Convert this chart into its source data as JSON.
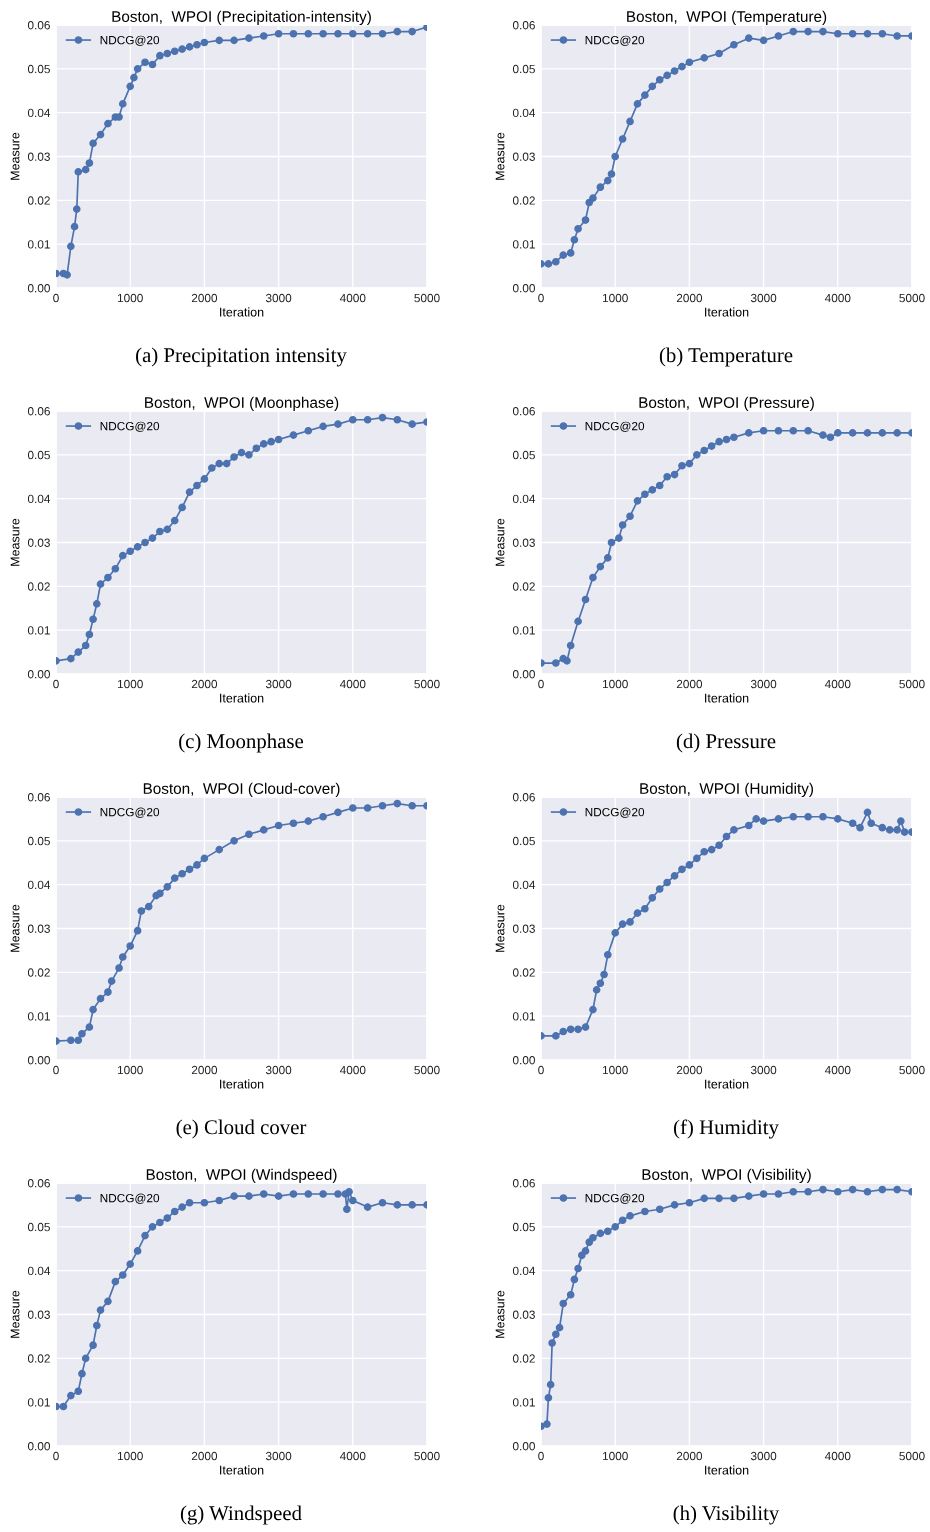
{
  "chart_data": [
    {
      "type": "line",
      "title": "Boston,  WPOI (Precipitation-intensity)",
      "xlabel": "Iteration",
      "ylabel": "Measure",
      "annotations": [
        "(a) Precipitation intensity"
      ],
      "xlim": [
        0,
        5000
      ],
      "ylim": [
        0,
        0.06
      ],
      "xticks": [
        0,
        1000,
        2000,
        3000,
        4000,
        5000
      ],
      "yticks": [
        {
          "value": 0,
          "label": "0.00"
        },
        {
          "value": 0.01,
          "label": "0.01"
        },
        {
          "value": 0.02,
          "label": "0.02"
        },
        {
          "value": 0.03,
          "label": "0.03"
        },
        {
          "value": 0.04,
          "label": "0.04"
        },
        {
          "value": 0.05,
          "label": "0.05"
        },
        {
          "value": 0.06,
          "label": "0.06"
        }
      ],
      "grid": true,
      "legend": "top left",
      "marker": "circle",
      "line_style": "solid",
      "series": [
        {
          "name": "NDCG@20",
          "color": "#4c72b0",
          "x": [
            0,
            100,
            150,
            200,
            250,
            280,
            300,
            400,
            450,
            500,
            600,
            700,
            800,
            850,
            900,
            1000,
            1050,
            1100,
            1200,
            1300,
            1400,
            1500,
            1600,
            1700,
            1800,
            1900,
            2000,
            2200,
            2400,
            2600,
            2800,
            3000,
            3200,
            3400,
            3600,
            3800,
            4000,
            4200,
            4400,
            4600,
            4800,
            5000
          ],
          "values": [
            0.0033,
            0.0033,
            0.003,
            0.0095,
            0.014,
            0.018,
            0.0265,
            0.027,
            0.0285,
            0.033,
            0.035,
            0.0375,
            0.039,
            0.039,
            0.042,
            0.046,
            0.048,
            0.05,
            0.0515,
            0.051,
            0.053,
            0.0535,
            0.054,
            0.0545,
            0.055,
            0.0555,
            0.056,
            0.0565,
            0.0565,
            0.057,
            0.0575,
            0.058,
            0.058,
            0.058,
            0.058,
            0.058,
            0.058,
            0.058,
            0.058,
            0.0585,
            0.0585,
            0.0595
          ]
        }
      ]
    },
    {
      "type": "line",
      "title": "Boston,  WPOI (Temperature)",
      "xlabel": "Iteration",
      "ylabel": "Measure",
      "annotations": [
        "(b) Temperature"
      ],
      "xlim": [
        0,
        5000
      ],
      "ylim": [
        0,
        0.06
      ],
      "xticks": [
        0,
        1000,
        2000,
        3000,
        4000,
        5000
      ],
      "yticks": [
        {
          "value": 0,
          "label": "0.00"
        },
        {
          "value": 0.01,
          "label": "0.01"
        },
        {
          "value": 0.02,
          "label": "0.02"
        },
        {
          "value": 0.03,
          "label": "0.03"
        },
        {
          "value": 0.04,
          "label": "0.04"
        },
        {
          "value": 0.05,
          "label": "0.05"
        },
        {
          "value": 0.06,
          "label": "0.06"
        }
      ],
      "grid": true,
      "legend": "top left",
      "marker": "circle",
      "line_style": "solid",
      "series": [
        {
          "name": "NDCG@20",
          "color": "#4c72b0",
          "x": [
            0,
            100,
            200,
            300,
            400,
            450,
            500,
            600,
            650,
            700,
            800,
            900,
            950,
            1000,
            1100,
            1200,
            1300,
            1400,
            1500,
            1600,
            1700,
            1800,
            1900,
            2000,
            2200,
            2400,
            2600,
            2800,
            3000,
            3200,
            3400,
            3600,
            3800,
            4000,
            4200,
            4400,
            4600,
            4800,
            5000
          ],
          "values": [
            0.0055,
            0.0055,
            0.006,
            0.0075,
            0.008,
            0.011,
            0.0135,
            0.0155,
            0.0195,
            0.0205,
            0.023,
            0.0245,
            0.026,
            0.03,
            0.034,
            0.038,
            0.042,
            0.044,
            0.046,
            0.0475,
            0.0485,
            0.0495,
            0.0505,
            0.0515,
            0.0525,
            0.0535,
            0.0555,
            0.057,
            0.0565,
            0.0575,
            0.0585,
            0.0585,
            0.0585,
            0.058,
            0.058,
            0.058,
            0.058,
            0.0575,
            0.0575
          ]
        }
      ]
    },
    {
      "type": "line",
      "title": "Boston,  WPOI (Moonphase)",
      "xlabel": "Iteration",
      "ylabel": "Measure",
      "annotations": [
        "(c) Moonphase"
      ],
      "xlim": [
        0,
        5000
      ],
      "ylim": [
        0,
        0.06
      ],
      "xticks": [
        0,
        1000,
        2000,
        3000,
        4000,
        5000
      ],
      "yticks": [
        {
          "value": 0,
          "label": "0.00"
        },
        {
          "value": 0.01,
          "label": "0.01"
        },
        {
          "value": 0.02,
          "label": "0.02"
        },
        {
          "value": 0.03,
          "label": "0.03"
        },
        {
          "value": 0.04,
          "label": "0.04"
        },
        {
          "value": 0.05,
          "label": "0.05"
        },
        {
          "value": 0.06,
          "label": "0.06"
        }
      ],
      "grid": true,
      "legend": "top left",
      "marker": "circle",
      "line_style": "solid",
      "series": [
        {
          "name": "NDCG@20",
          "color": "#4c72b0",
          "x": [
            0,
            200,
            300,
            400,
            450,
            500,
            550,
            600,
            700,
            800,
            900,
            1000,
            1100,
            1200,
            1300,
            1400,
            1500,
            1600,
            1700,
            1800,
            1900,
            2000,
            2100,
            2200,
            2300,
            2400,
            2500,
            2600,
            2700,
            2800,
            2900,
            3000,
            3200,
            3400,
            3600,
            3800,
            4000,
            4200,
            4400,
            4600,
            4800,
            5000
          ],
          "values": [
            0.003,
            0.0035,
            0.005,
            0.0065,
            0.009,
            0.0125,
            0.016,
            0.0205,
            0.022,
            0.024,
            0.027,
            0.028,
            0.029,
            0.03,
            0.031,
            0.0325,
            0.033,
            0.035,
            0.038,
            0.0415,
            0.043,
            0.0445,
            0.047,
            0.048,
            0.048,
            0.0495,
            0.0505,
            0.05,
            0.0515,
            0.0525,
            0.053,
            0.0535,
            0.0545,
            0.0555,
            0.0565,
            0.057,
            0.058,
            0.058,
            0.0585,
            0.058,
            0.057,
            0.0575
          ]
        }
      ]
    },
    {
      "type": "line",
      "title": "Boston,  WPOI (Pressure)",
      "xlabel": "Iteration",
      "ylabel": "Measure",
      "annotations": [
        "(d) Pressure"
      ],
      "xlim": [
        0,
        5000
      ],
      "ylim": [
        0,
        0.06
      ],
      "xticks": [
        0,
        1000,
        2000,
        3000,
        4000,
        5000
      ],
      "yticks": [
        {
          "value": 0,
          "label": "0.00"
        },
        {
          "value": 0.01,
          "label": "0.01"
        },
        {
          "value": 0.02,
          "label": "0.02"
        },
        {
          "value": 0.03,
          "label": "0.03"
        },
        {
          "value": 0.04,
          "label": "0.04"
        },
        {
          "value": 0.05,
          "label": "0.05"
        },
        {
          "value": 0.06,
          "label": "0.06"
        }
      ],
      "grid": true,
      "legend": "top left",
      "marker": "circle",
      "line_style": "solid",
      "series": [
        {
          "name": "NDCG@20",
          "color": "#4c72b0",
          "x": [
            0,
            200,
            300,
            350,
            400,
            500,
            600,
            700,
            800,
            900,
            950,
            1050,
            1100,
            1200,
            1300,
            1400,
            1500,
            1600,
            1700,
            1800,
            1900,
            2000,
            2100,
            2200,
            2300,
            2400,
            2500,
            2600,
            2800,
            3000,
            3200,
            3400,
            3600,
            3800,
            3900,
            4000,
            4200,
            4400,
            4600,
            4800,
            5000
          ],
          "values": [
            0.0025,
            0.0025,
            0.0035,
            0.003,
            0.0065,
            0.012,
            0.017,
            0.022,
            0.0245,
            0.0265,
            0.03,
            0.031,
            0.034,
            0.036,
            0.0395,
            0.041,
            0.042,
            0.043,
            0.045,
            0.0455,
            0.0475,
            0.048,
            0.05,
            0.051,
            0.052,
            0.053,
            0.0535,
            0.054,
            0.055,
            0.0555,
            0.0555,
            0.0555,
            0.0555,
            0.0545,
            0.054,
            0.055,
            0.055,
            0.055,
            0.055,
            0.055,
            0.055
          ]
        }
      ]
    },
    {
      "type": "line",
      "title": "Boston,  WPOI (Cloud-cover)",
      "xlabel": "Iteration",
      "ylabel": "Measure",
      "annotations": [
        "(e) Cloud cover"
      ],
      "xlim": [
        0,
        5000
      ],
      "ylim": [
        0,
        0.06
      ],
      "xticks": [
        0,
        1000,
        2000,
        3000,
        4000,
        5000
      ],
      "yticks": [
        {
          "value": 0,
          "label": "0.00"
        },
        {
          "value": 0.01,
          "label": "0.01"
        },
        {
          "value": 0.02,
          "label": "0.02"
        },
        {
          "value": 0.03,
          "label": "0.03"
        },
        {
          "value": 0.04,
          "label": "0.04"
        },
        {
          "value": 0.05,
          "label": "0.05"
        },
        {
          "value": 0.06,
          "label": "0.06"
        }
      ],
      "grid": true,
      "legend": "top left",
      "marker": "circle",
      "line_style": "solid",
      "series": [
        {
          "name": "NDCG@20",
          "color": "#4c72b0",
          "x": [
            0,
            200,
            300,
            350,
            450,
            500,
            600,
            700,
            750,
            850,
            900,
            1000,
            1100,
            1150,
            1250,
            1350,
            1400,
            1500,
            1600,
            1700,
            1800,
            1900,
            2000,
            2200,
            2400,
            2600,
            2800,
            3000,
            3200,
            3400,
            3600,
            3800,
            4000,
            4200,
            4400,
            4600,
            4800,
            5000
          ],
          "values": [
            0.0043,
            0.0045,
            0.0045,
            0.006,
            0.0075,
            0.0115,
            0.014,
            0.0155,
            0.018,
            0.021,
            0.0235,
            0.026,
            0.0295,
            0.034,
            0.035,
            0.0375,
            0.038,
            0.0395,
            0.0415,
            0.0425,
            0.0435,
            0.0445,
            0.046,
            0.048,
            0.05,
            0.0515,
            0.0525,
            0.0535,
            0.054,
            0.0545,
            0.0555,
            0.0565,
            0.0575,
            0.0575,
            0.058,
            0.0585,
            0.058,
            0.058
          ]
        }
      ]
    },
    {
      "type": "line",
      "title": "Boston,  WPOI (Humidity)",
      "xlabel": "Iteration",
      "ylabel": "Measure",
      "annotations": [
        "(f) Humidity"
      ],
      "xlim": [
        0,
        5000
      ],
      "ylim": [
        0,
        0.06
      ],
      "xticks": [
        0,
        1000,
        2000,
        3000,
        4000,
        5000
      ],
      "yticks": [
        {
          "value": 0,
          "label": "0.00"
        },
        {
          "value": 0.01,
          "label": "0.01"
        },
        {
          "value": 0.02,
          "label": "0.02"
        },
        {
          "value": 0.03,
          "label": "0.03"
        },
        {
          "value": 0.04,
          "label": "0.04"
        },
        {
          "value": 0.05,
          "label": "0.05"
        },
        {
          "value": 0.06,
          "label": "0.06"
        }
      ],
      "grid": true,
      "legend": "top left",
      "marker": "circle",
      "line_style": "solid",
      "series": [
        {
          "name": "NDCG@20",
          "color": "#4c72b0",
          "x": [
            0,
            200,
            300,
            400,
            500,
            600,
            700,
            750,
            800,
            850,
            900,
            1000,
            1100,
            1200,
            1300,
            1400,
            1500,
            1600,
            1700,
            1800,
            1900,
            2000,
            2100,
            2200,
            2300,
            2400,
            2500,
            2600,
            2800,
            2900,
            3000,
            3200,
            3400,
            3600,
            3800,
            4000,
            4200,
            4300,
            4400,
            4450,
            4600,
            4700,
            4800,
            4850,
            4900,
            5000
          ],
          "values": [
            0.0055,
            0.0055,
            0.0065,
            0.007,
            0.007,
            0.0075,
            0.0115,
            0.016,
            0.0175,
            0.0195,
            0.024,
            0.029,
            0.031,
            0.0315,
            0.0335,
            0.0345,
            0.037,
            0.039,
            0.0405,
            0.042,
            0.0435,
            0.0445,
            0.046,
            0.0475,
            0.048,
            0.049,
            0.051,
            0.0525,
            0.0535,
            0.055,
            0.0545,
            0.055,
            0.0555,
            0.0555,
            0.0555,
            0.055,
            0.054,
            0.053,
            0.0565,
            0.054,
            0.053,
            0.0525,
            0.0525,
            0.0545,
            0.052,
            0.052
          ]
        }
      ]
    },
    {
      "type": "line",
      "title": "Boston,  WPOI (Windspeed)",
      "xlabel": "Iteration",
      "ylabel": "Measure",
      "annotations": [
        "(g) Windspeed"
      ],
      "xlim": [
        0,
        5000
      ],
      "ylim": [
        0,
        0.06
      ],
      "xticks": [
        0,
        1000,
        2000,
        3000,
        4000,
        5000
      ],
      "yticks": [
        {
          "value": 0,
          "label": "0.00"
        },
        {
          "value": 0.01,
          "label": "0.01"
        },
        {
          "value": 0.02,
          "label": "0.02"
        },
        {
          "value": 0.03,
          "label": "0.03"
        },
        {
          "value": 0.04,
          "label": "0.04"
        },
        {
          "value": 0.05,
          "label": "0.05"
        },
        {
          "value": 0.06,
          "label": "0.06"
        }
      ],
      "grid": true,
      "legend": "top left",
      "marker": "circle",
      "line_style": "solid",
      "series": [
        {
          "name": "NDCG@20",
          "color": "#4c72b0",
          "x": [
            0,
            100,
            200,
            300,
            350,
            400,
            500,
            550,
            600,
            700,
            800,
            900,
            1000,
            1100,
            1200,
            1300,
            1400,
            1500,
            1600,
            1700,
            1800,
            2000,
            2200,
            2400,
            2600,
            2800,
            3000,
            3200,
            3400,
            3600,
            3800,
            3900,
            3920,
            3950,
            4000,
            4200,
            4400,
            4600,
            4800,
            5000
          ],
          "values": [
            0.009,
            0.009,
            0.0115,
            0.0125,
            0.0165,
            0.02,
            0.023,
            0.0275,
            0.031,
            0.033,
            0.0375,
            0.039,
            0.0415,
            0.0445,
            0.048,
            0.05,
            0.051,
            0.052,
            0.0535,
            0.0545,
            0.0555,
            0.0555,
            0.056,
            0.057,
            0.057,
            0.0575,
            0.057,
            0.0575,
            0.0575,
            0.0575,
            0.0575,
            0.0575,
            0.054,
            0.058,
            0.056,
            0.0545,
            0.0555,
            0.055,
            0.055,
            0.055
          ]
        }
      ]
    },
    {
      "type": "line",
      "title": "Boston,  WPOI (Visibility)",
      "xlabel": "Iteration",
      "ylabel": "Measure",
      "annotations": [
        "(h) Visibility"
      ],
      "xlim": [
        0,
        5000
      ],
      "ylim": [
        0,
        0.06
      ],
      "xticks": [
        0,
        1000,
        2000,
        3000,
        4000,
        5000
      ],
      "yticks": [
        {
          "value": 0,
          "label": "0.00"
        },
        {
          "value": 0.01,
          "label": "0.01"
        },
        {
          "value": 0.02,
          "label": "0.02"
        },
        {
          "value": 0.03,
          "label": "0.03"
        },
        {
          "value": 0.04,
          "label": "0.04"
        },
        {
          "value": 0.05,
          "label": "0.05"
        },
        {
          "value": 0.06,
          "label": "0.06"
        }
      ],
      "grid": true,
      "legend": "top left",
      "marker": "circle",
      "line_style": "solid",
      "series": [
        {
          "name": "NDCG@20",
          "color": "#4c72b0",
          "x": [
            0,
            80,
            100,
            130,
            150,
            200,
            250,
            300,
            400,
            450,
            500,
            550,
            600,
            650,
            700,
            800,
            900,
            1000,
            1100,
            1200,
            1400,
            1600,
            1800,
            2000,
            2200,
            2400,
            2600,
            2800,
            3000,
            3200,
            3400,
            3600,
            3800,
            4000,
            4200,
            4400,
            4600,
            4800,
            5000
          ],
          "values": [
            0.0045,
            0.005,
            0.011,
            0.014,
            0.0235,
            0.0255,
            0.027,
            0.0325,
            0.0345,
            0.038,
            0.0405,
            0.0435,
            0.0445,
            0.0465,
            0.0475,
            0.0485,
            0.049,
            0.05,
            0.0515,
            0.0525,
            0.0535,
            0.054,
            0.055,
            0.0555,
            0.0565,
            0.0565,
            0.0565,
            0.057,
            0.0575,
            0.0575,
            0.058,
            0.058,
            0.0585,
            0.058,
            0.0585,
            0.058,
            0.0585,
            0.0585,
            0.058
          ]
        }
      ]
    }
  ]
}
